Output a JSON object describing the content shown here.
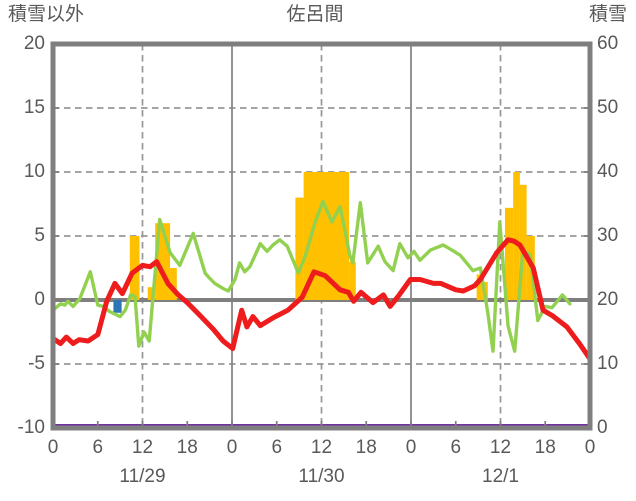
{
  "header": {
    "left_label": "積雪以外",
    "title": "佐呂間",
    "right_label": "積雪"
  },
  "colors": {
    "border": "#7f7f7f",
    "gridline": "#979797",
    "day_line": "#808080",
    "text": "#595959",
    "snowfall_bar": "#ffc000",
    "rain_bar": "#2e75b6",
    "wind_line": "#92d050",
    "temperature_line": "#ee1c1c",
    "snow_depth_line": "#7030a0"
  },
  "chart_data": {
    "type": "bar",
    "subtype": "composite bar + line, dual y-axis, hourly weather chart",
    "title": "佐呂間",
    "x_axis": {
      "min_hour": 0,
      "max_hour": 72,
      "hour_tick_positions": [
        0,
        6,
        12,
        18,
        24,
        30,
        36,
        42,
        48,
        54,
        60,
        66,
        72
      ],
      "hour_tick_labels": [
        "0",
        "6",
        "12",
        "18",
        "0",
        "6",
        "12",
        "18",
        "0",
        "6",
        "12",
        "18",
        "0"
      ],
      "date_labels": [
        {
          "text": "11/29",
          "hour": 12
        },
        {
          "text": "11/30",
          "hour": 36
        },
        {
          "text": "12/1",
          "hour": 60
        }
      ],
      "dashed_gridline_hours": [
        12,
        36,
        60
      ],
      "solid_gridline_hours": [
        24,
        48
      ]
    },
    "left_axis": {
      "title": "積雪以外",
      "min": -10,
      "max": 20,
      "ticks": [
        20,
        15,
        10,
        5,
        0,
        -5,
        -10
      ],
      "dashed_gridline_values": [
        15,
        10,
        5,
        -5
      ],
      "zero_line_value": 0
    },
    "right_axis": {
      "title": "積雪",
      "min": 0,
      "max": 60,
      "ticks": [
        60,
        50,
        40,
        30,
        20,
        10,
        0
      ]
    },
    "legend": "none",
    "grid": "dashed horizontal at 15/10/5/-5, dashed vertical at each 12:00, solid vertical at each 0:00",
    "series": [
      {
        "name": "snowfall-bars",
        "type": "bar",
        "axis": "left",
        "color": "#ffc000",
        "bars": [
          [
            10.3,
            11.6,
            5.0
          ],
          [
            12.7,
            13.7,
            1.0
          ],
          [
            13.7,
            15.7,
            6.0
          ],
          [
            15.7,
            16.6,
            2.5
          ],
          [
            32.5,
            33.6,
            8.0
          ],
          [
            33.6,
            39.7,
            10.0
          ],
          [
            39.7,
            40.6,
            3.0
          ],
          [
            56.8,
            57.6,
            2.0
          ],
          [
            57.6,
            58.3,
            1.4
          ],
          [
            60.6,
            61.7,
            7.2
          ],
          [
            61.7,
            62.6,
            10.0
          ],
          [
            62.6,
            63.5,
            9.0
          ],
          [
            63.5,
            64.6,
            5.0
          ]
        ]
      },
      {
        "name": "rain-bar",
        "type": "bar",
        "axis": "left",
        "color": "#2e75b6",
        "bars": [
          [
            8.1,
            9.2,
            -1.0
          ]
        ]
      },
      {
        "name": "wind-line",
        "type": "line",
        "axis": "left",
        "color": "#92d050",
        "width": 3.4,
        "points": [
          [
            0,
            -0.8
          ],
          [
            1,
            -0.3
          ],
          [
            1.6,
            -0.4
          ],
          [
            2,
            -0.1
          ],
          [
            2.7,
            -0.5
          ],
          [
            3.6,
            0.1
          ],
          [
            5,
            2.2
          ],
          [
            6,
            -0.4
          ],
          [
            6.7,
            -0.5
          ],
          [
            7.6,
            -0.9
          ],
          [
            9,
            -1.3
          ],
          [
            9.7,
            -0.8
          ],
          [
            10.4,
            0.4
          ],
          [
            11,
            0.3
          ],
          [
            11.5,
            -3.6
          ],
          [
            12.2,
            -2.5
          ],
          [
            12.9,
            -3.2
          ],
          [
            14.3,
            6.3
          ],
          [
            15.7,
            3.7
          ],
          [
            17,
            2.7
          ],
          [
            18.8,
            5.2
          ],
          [
            20.4,
            2.1
          ],
          [
            21,
            1.7
          ],
          [
            21.7,
            1.3
          ],
          [
            22.8,
            0.9
          ],
          [
            23.5,
            0.7
          ],
          [
            24.4,
            1.6
          ],
          [
            25,
            2.9
          ],
          [
            25.7,
            2.2
          ],
          [
            26.4,
            2.6
          ],
          [
            27.8,
            4.4
          ],
          [
            28.7,
            3.8
          ],
          [
            29.5,
            4.3
          ],
          [
            30.4,
            4.7
          ],
          [
            31.4,
            4.2
          ],
          [
            32.9,
            2.1
          ],
          [
            33.8,
            3.4
          ],
          [
            35.1,
            6.0
          ],
          [
            36.2,
            7.7
          ],
          [
            37.4,
            6.1
          ],
          [
            38.5,
            7.3
          ],
          [
            39.8,
            3.5
          ],
          [
            40.2,
            2.9
          ],
          [
            41.2,
            7.6
          ],
          [
            42.2,
            2.9
          ],
          [
            43.6,
            4.2
          ],
          [
            44.5,
            3.0
          ],
          [
            45.6,
            2.3
          ],
          [
            46.5,
            4.4
          ],
          [
            47.6,
            3.3
          ],
          [
            48.4,
            3.8
          ],
          [
            49.2,
            3.1
          ],
          [
            50.6,
            3.9
          ],
          [
            52.3,
            4.3
          ],
          [
            53.2,
            4.0
          ],
          [
            54.6,
            3.5
          ],
          [
            56.3,
            2.3
          ],
          [
            57.3,
            2.5
          ],
          [
            58.3,
            -1.0
          ],
          [
            59,
            -4.0
          ],
          [
            59.9,
            6.1
          ],
          [
            61,
            -2.0
          ],
          [
            61.9,
            -4.0
          ],
          [
            63,
            3.9
          ],
          [
            64,
            3.5
          ],
          [
            65,
            -1.6
          ],
          [
            66,
            -0.5
          ],
          [
            66.9,
            -0.6
          ],
          [
            68.3,
            0.4
          ],
          [
            69.3,
            -0.3
          ]
        ]
      },
      {
        "name": "temperature-line",
        "type": "line",
        "axis": "left",
        "color": "#ee1c1c",
        "width": 5,
        "points": [
          [
            0,
            -3.0
          ],
          [
            1,
            -3.4
          ],
          [
            1.8,
            -2.9
          ],
          [
            2.7,
            -3.4
          ],
          [
            3.5,
            -3.1
          ],
          [
            4.7,
            -3.2
          ],
          [
            6,
            -2.7
          ],
          [
            7.2,
            -0.1
          ],
          [
            8.3,
            1.3
          ],
          [
            9.3,
            0.5
          ],
          [
            10.6,
            2.1
          ],
          [
            12,
            2.7
          ],
          [
            13,
            2.6
          ],
          [
            13.9,
            3.0
          ],
          [
            15.4,
            1.3
          ],
          [
            16.8,
            0.4
          ],
          [
            18,
            -0.2
          ],
          [
            19.7,
            -1.2
          ],
          [
            21.5,
            -2.3
          ],
          [
            22.8,
            -3.2
          ],
          [
            24.1,
            -3.8
          ],
          [
            25.3,
            -0.8
          ],
          [
            26,
            -2.1
          ],
          [
            26.8,
            -1.3
          ],
          [
            27.8,
            -2.0
          ],
          [
            29.5,
            -1.4
          ],
          [
            31.5,
            -0.8
          ],
          [
            33.4,
            0.2
          ],
          [
            35,
            2.2
          ],
          [
            36.5,
            1.9
          ],
          [
            38.5,
            0.8
          ],
          [
            39.6,
            0.6
          ],
          [
            40.3,
            -0.1
          ],
          [
            41.3,
            0.6
          ],
          [
            42.9,
            -0.2
          ],
          [
            44.3,
            0.4
          ],
          [
            45.2,
            -0.5
          ],
          [
            46.3,
            0.3
          ],
          [
            47.9,
            1.6
          ],
          [
            49.2,
            1.6
          ],
          [
            51,
            1.3
          ],
          [
            52,
            1.3
          ],
          [
            54,
            0.8
          ],
          [
            55,
            0.7
          ],
          [
            56.5,
            1.1
          ],
          [
            57.3,
            1.6
          ],
          [
            59.5,
            3.7
          ],
          [
            61,
            4.7
          ],
          [
            61.8,
            4.6
          ],
          [
            62.6,
            4.3
          ],
          [
            64.4,
            2.5
          ],
          [
            65.7,
            -0.8
          ],
          [
            66.9,
            -1.2
          ],
          [
            68.9,
            -2.1
          ],
          [
            70.7,
            -3.5
          ],
          [
            72,
            -4.6
          ]
        ]
      },
      {
        "name": "snow-depth-line",
        "type": "line",
        "axis": "right",
        "color": "#7030a0",
        "width": 3,
        "points": [
          [
            0,
            0
          ],
          [
            72,
            0
          ]
        ]
      }
    ]
  }
}
